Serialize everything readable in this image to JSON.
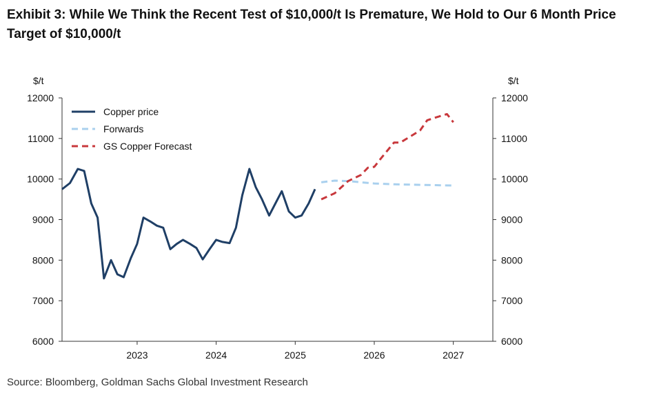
{
  "title": "Exhibit 3: While We Think the Recent Test of $10,000/t Is Premature, We Hold to Our 6 Month Price Target of $10,000/t",
  "source": "Source: Bloomberg, Goldman Sachs Global Investment Research",
  "chart_data": {
    "type": "line",
    "title": "Exhibit 3: While We Think the Recent Test of $10,000/t Is Premature, We Hold to Our 6 Month Price Target of $10,000/t",
    "ylabel_left": "$/t",
    "ylabel_right": "$/t",
    "ylim": [
      6000,
      12000
    ],
    "yticks": [
      6000,
      7000,
      8000,
      9000,
      10000,
      11000,
      12000
    ],
    "xlim": [
      2022.05,
      2027.5
    ],
    "xticks": [
      2023,
      2024,
      2025,
      2026,
      2027
    ],
    "grid": false,
    "legend_position": "top-left",
    "series": [
      {
        "name": "Copper price",
        "color": "#1f3f66",
        "style": "solid",
        "x": [
          2022.05,
          2022.15,
          2022.25,
          2022.33,
          2022.42,
          2022.5,
          2022.58,
          2022.67,
          2022.75,
          2022.83,
          2022.92,
          2023.0,
          2023.08,
          2023.17,
          2023.25,
          2023.33,
          2023.42,
          2023.5,
          2023.58,
          2023.67,
          2023.75,
          2023.83,
          2023.92,
          2024.0,
          2024.08,
          2024.17,
          2024.25,
          2024.33,
          2024.42,
          2024.5,
          2024.58,
          2024.67,
          2024.75,
          2024.83,
          2024.92,
          2025.0,
          2025.08,
          2025.17,
          2025.25
        ],
        "values": [
          9750,
          9900,
          10250,
          10200,
          9400,
          9050,
          7550,
          8000,
          7650,
          7580,
          8050,
          8400,
          9050,
          8950,
          8850,
          8800,
          8270,
          8400,
          8500,
          8400,
          8300,
          8020,
          8280,
          8500,
          8450,
          8420,
          8800,
          9600,
          10250,
          9800,
          9500,
          9100,
          9400,
          9700,
          9200,
          9050,
          9100,
          9400,
          9750
        ]
      },
      {
        "name": "Forwards",
        "color": "#a9d0ee",
        "style": "dashed",
        "x": [
          2025.33,
          2025.5,
          2025.67,
          2025.83,
          2026.0,
          2026.25,
          2026.5,
          2026.75,
          2027.0
        ],
        "values": [
          9920,
          9960,
          9950,
          9920,
          9890,
          9870,
          9860,
          9850,
          9840
        ]
      },
      {
        "name": "GS Copper Forecast",
        "color": "#c8383c",
        "style": "dashed",
        "x": [
          2025.33,
          2025.5,
          2025.67,
          2025.83,
          2025.92,
          2026.0,
          2026.08,
          2026.25,
          2026.33,
          2026.5,
          2026.58,
          2026.67,
          2026.83,
          2026.92,
          2027.0
        ],
        "values": [
          9500,
          9650,
          9950,
          10100,
          10280,
          10300,
          10500,
          10900,
          10900,
          11100,
          11200,
          11450,
          11550,
          11600,
          11400
        ]
      }
    ]
  }
}
